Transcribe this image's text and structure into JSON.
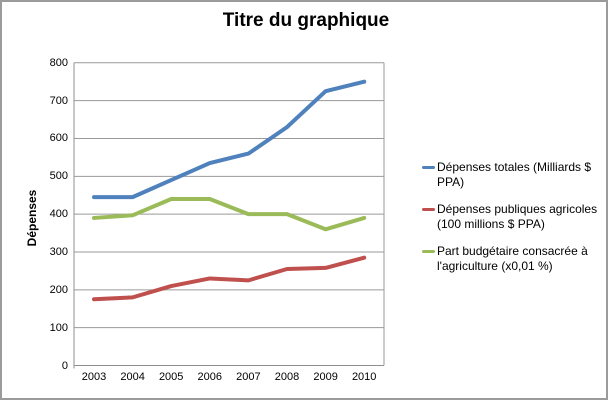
{
  "chart_data": {
    "type": "line",
    "title": "Titre du graphique",
    "xlabel": "",
    "ylabel": "Dépenses",
    "ylim": [
      0,
      800
    ],
    "ytick_step": 100,
    "grid": "horizontal",
    "legend_position": "right",
    "categories": [
      "2003",
      "2004",
      "2005",
      "2006",
      "2007",
      "2008",
      "2009",
      "2010"
    ],
    "series": [
      {
        "name": "Dépenses totales (Milliards $ PPA)",
        "color": "#4f81bd",
        "values": [
          445,
          445,
          490,
          535,
          560,
          630,
          725,
          750
        ]
      },
      {
        "name": "Dépenses publiques agricoles (100 millions $ PPA)",
        "color": "#c0504d",
        "values": [
          175,
          180,
          210,
          230,
          225,
          255,
          258,
          285
        ]
      },
      {
        "name": "Part budgétaire consacrée à l'agriculture (x0,01 %)",
        "color": "#9bbb59",
        "values": [
          390,
          397,
          440,
          440,
          400,
          400,
          360,
          390
        ]
      }
    ],
    "colors": {
      "axis": "#8f8f8f",
      "gridline": "#9a9a9a",
      "plot_right_border": "#9a9a9a"
    }
  }
}
